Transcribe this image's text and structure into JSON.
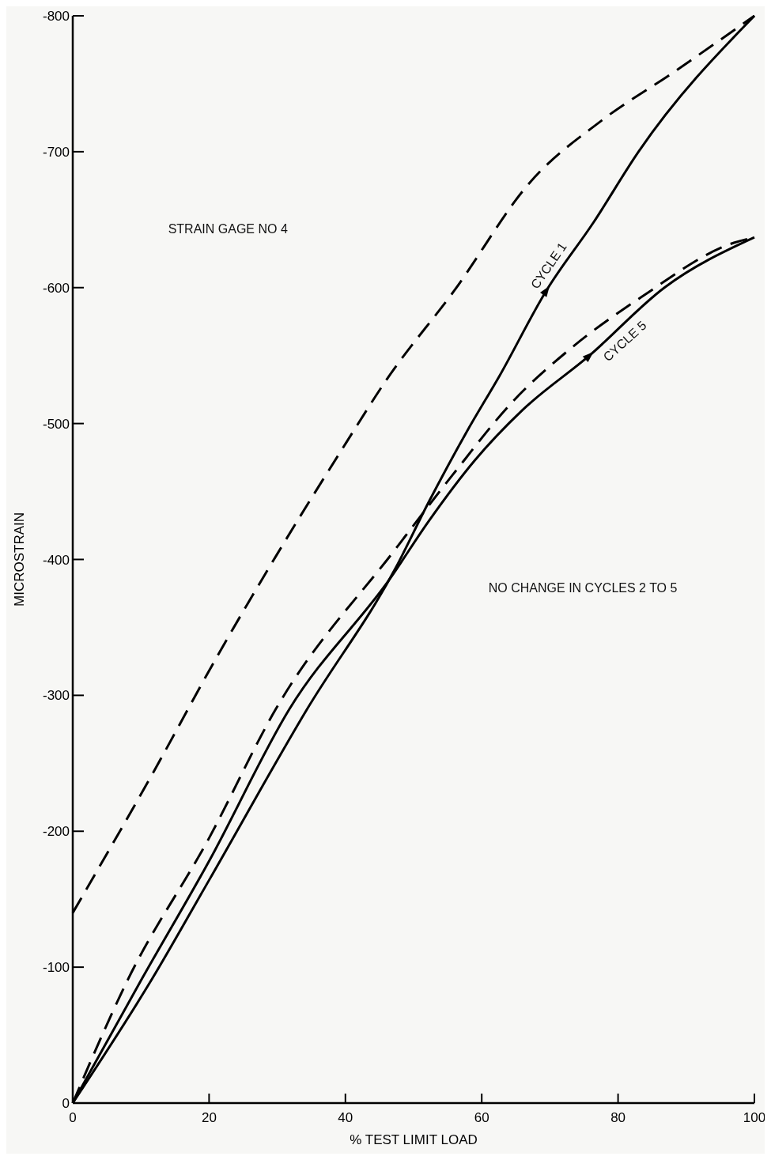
{
  "chart_data": {
    "type": "line",
    "xlabel": "% TEST LIMIT LOAD",
    "ylabel": "MICROSTRAIN",
    "xlim": [
      0,
      100
    ],
    "xticks": [
      0,
      20,
      40,
      60,
      80,
      100
    ],
    "ylim": [
      0,
      -800
    ],
    "yticks": [
      0,
      -100,
      -200,
      -300,
      -400,
      -500,
      -600,
      -700,
      -800
    ],
    "series": [
      {
        "color": "#000000",
        "line_style": "solid",
        "x": [
          0,
          11.6,
          20,
          34.4,
          47.4,
          52.2,
          57.8,
          62.6,
          69.5,
          76.4,
          83,
          100
        ],
        "values": [
          0,
          -91,
          -164,
          -290,
          -394,
          -442,
          -494,
          -535,
          -598,
          -648,
          -700,
          -800
        ]
      },
      {
        "color": "#000000",
        "line_style": "dashed",
        "x": [
          100,
          88,
          77.6,
          67,
          56,
          46,
          40,
          30,
          21,
          12,
          0
        ],
        "values": [
          -800,
          -758,
          -723,
          -677,
          -598,
          -532,
          -485,
          -404,
          -327,
          -245,
          -140
        ]
      },
      {
        "color": "#000000",
        "line_style": "solid",
        "x": [
          0,
          10.1,
          20,
          31.8,
          46.7,
          52.2,
          59,
          66,
          75.8,
          86.8,
          100
        ],
        "values": [
          0,
          -91,
          -178,
          -290,
          -387,
          -428,
          -473,
          -510,
          -550,
          -600,
          -637
        ]
      },
      {
        "color": "#000000",
        "line_style": "dashed",
        "x": [
          100,
          97,
          83.4,
          73,
          64.7,
          55.7,
          47.4,
          29.8,
          20,
          8.1,
          0
        ],
        "values": [
          -637,
          -633,
          -593,
          -555,
          -517,
          -462,
          -408,
          -290,
          -195,
          -91,
          0
        ]
      }
    ],
    "annotations": [
      "STRAIN GAGE NO 4",
      {
        "text": "CYCLE 1",
        "x": 69.5,
        "y": -598
      },
      {
        "text": "CYCLE 5",
        "x": 75.8,
        "y": -550
      },
      "NO CHANGE IN CYCLES 2 TO 5"
    ]
  }
}
